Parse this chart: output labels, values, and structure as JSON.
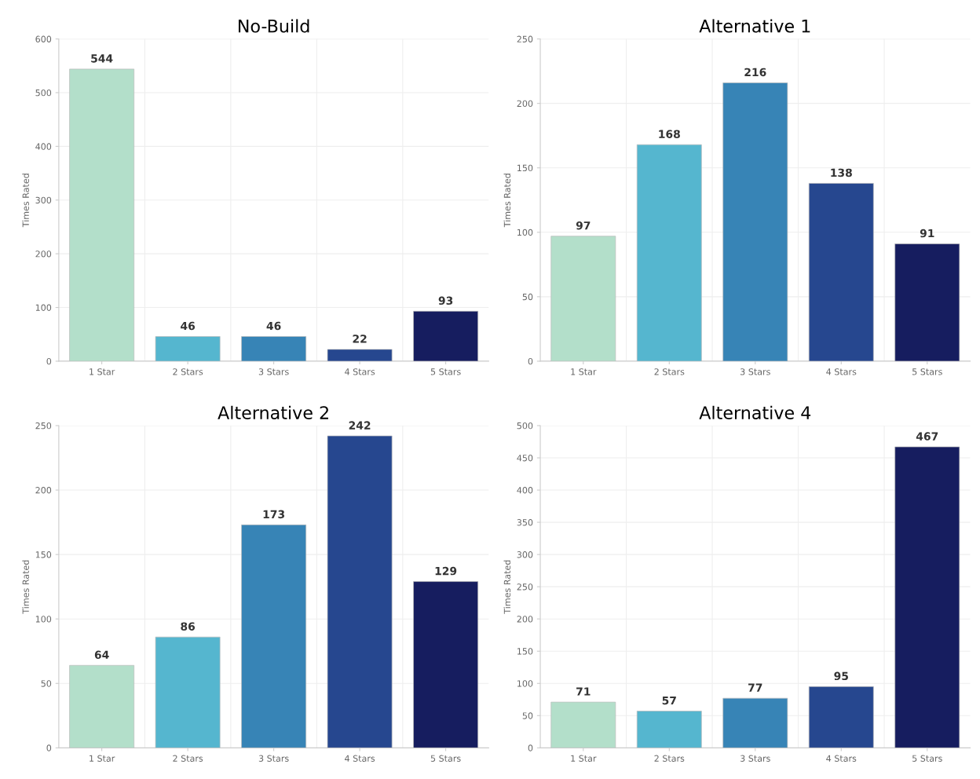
{
  "chart_data": [
    {
      "type": "bar",
      "title": "No-Build",
      "ylabel": "Times Rated",
      "categories": [
        "1 Star",
        "2 Stars",
        "3 Stars",
        "4 Stars",
        "5 Stars"
      ],
      "values": [
        544,
        46,
        46,
        22,
        93
      ],
      "colors": [
        "#b3dfca",
        "#55b6cf",
        "#3784b6",
        "#26478f",
        "#161d5f"
      ],
      "ylim": [
        0,
        600
      ],
      "yticks": [
        0,
        100,
        200,
        300,
        400,
        500,
        600
      ],
      "grid": true,
      "data_labels": true
    },
    {
      "type": "bar",
      "title": "Alternative 1",
      "ylabel": "Times Rated",
      "categories": [
        "1 Star",
        "2 Stars",
        "3 Stars",
        "4 Stars",
        "5 Stars"
      ],
      "values": [
        97,
        168,
        216,
        138,
        91
      ],
      "colors": [
        "#b3dfca",
        "#55b6cf",
        "#3784b6",
        "#26478f",
        "#161d5f"
      ],
      "ylim": [
        0,
        250
      ],
      "yticks": [
        0,
        50,
        100,
        150,
        200,
        250
      ],
      "grid": true,
      "data_labels": true
    },
    {
      "type": "bar",
      "title": "Alternative 2",
      "ylabel": "Times Rated",
      "categories": [
        "1 Star",
        "2 Stars",
        "3 Stars",
        "4 Stars",
        "5 Stars"
      ],
      "values": [
        64,
        86,
        173,
        242,
        129
      ],
      "colors": [
        "#b3dfca",
        "#55b6cf",
        "#3784b6",
        "#26478f",
        "#161d5f"
      ],
      "ylim": [
        0,
        250
      ],
      "yticks": [
        0,
        50,
        100,
        150,
        200,
        250
      ],
      "grid": true,
      "data_labels": true
    },
    {
      "type": "bar",
      "title": "Alternative 4",
      "ylabel": "Times Rated",
      "categories": [
        "1 Star",
        "2 Stars",
        "3 Stars",
        "4 Stars",
        "5 Stars"
      ],
      "values": [
        71,
        57,
        77,
        95,
        467
      ],
      "colors": [
        "#b3dfca",
        "#55b6cf",
        "#3784b6",
        "#26478f",
        "#161d5f"
      ],
      "ylim": [
        0,
        500
      ],
      "yticks": [
        0,
        50,
        100,
        150,
        200,
        250,
        300,
        350,
        400,
        450,
        500
      ],
      "grid": true,
      "data_labels": true
    }
  ]
}
